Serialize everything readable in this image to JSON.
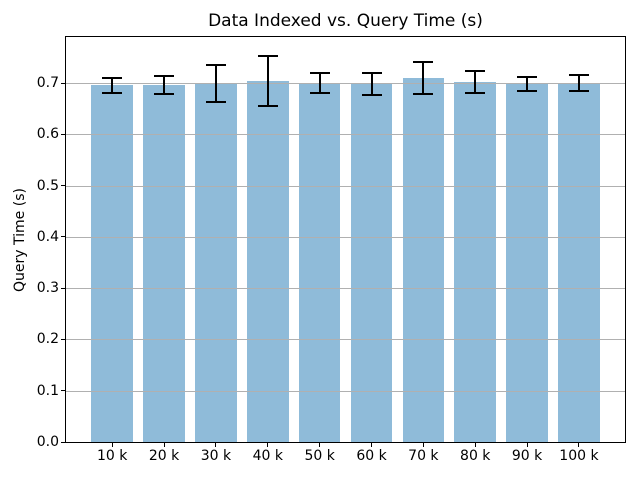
{
  "chart_data": {
    "type": "bar",
    "title": "Data Indexed vs. Query Time (s)",
    "xlabel": "",
    "ylabel": "Query Time (s)",
    "categories": [
      "10 k",
      "20 k",
      "30 k",
      "40 k",
      "50 k",
      "60 k",
      "70 k",
      "80 k",
      "90 k",
      "100 k"
    ],
    "values": [
      0.696,
      0.696,
      0.699,
      0.704,
      0.7,
      0.698,
      0.71,
      0.702,
      0.698,
      0.7
    ],
    "errors": [
      0.015,
      0.017,
      0.036,
      0.048,
      0.019,
      0.021,
      0.031,
      0.022,
      0.014,
      0.016
    ],
    "yticks": [
      0.0,
      0.1,
      0.2,
      0.3,
      0.4,
      0.5,
      0.6,
      0.7
    ],
    "ylim": [
      0,
      0.79
    ],
    "grid": true,
    "legend_position": "none",
    "bar_color": "#8fbbd9",
    "error_bar_color": "#000000",
    "grid_color": "#b0b0b0",
    "axis_color": "#000000",
    "background_color": "#ffffff"
  }
}
